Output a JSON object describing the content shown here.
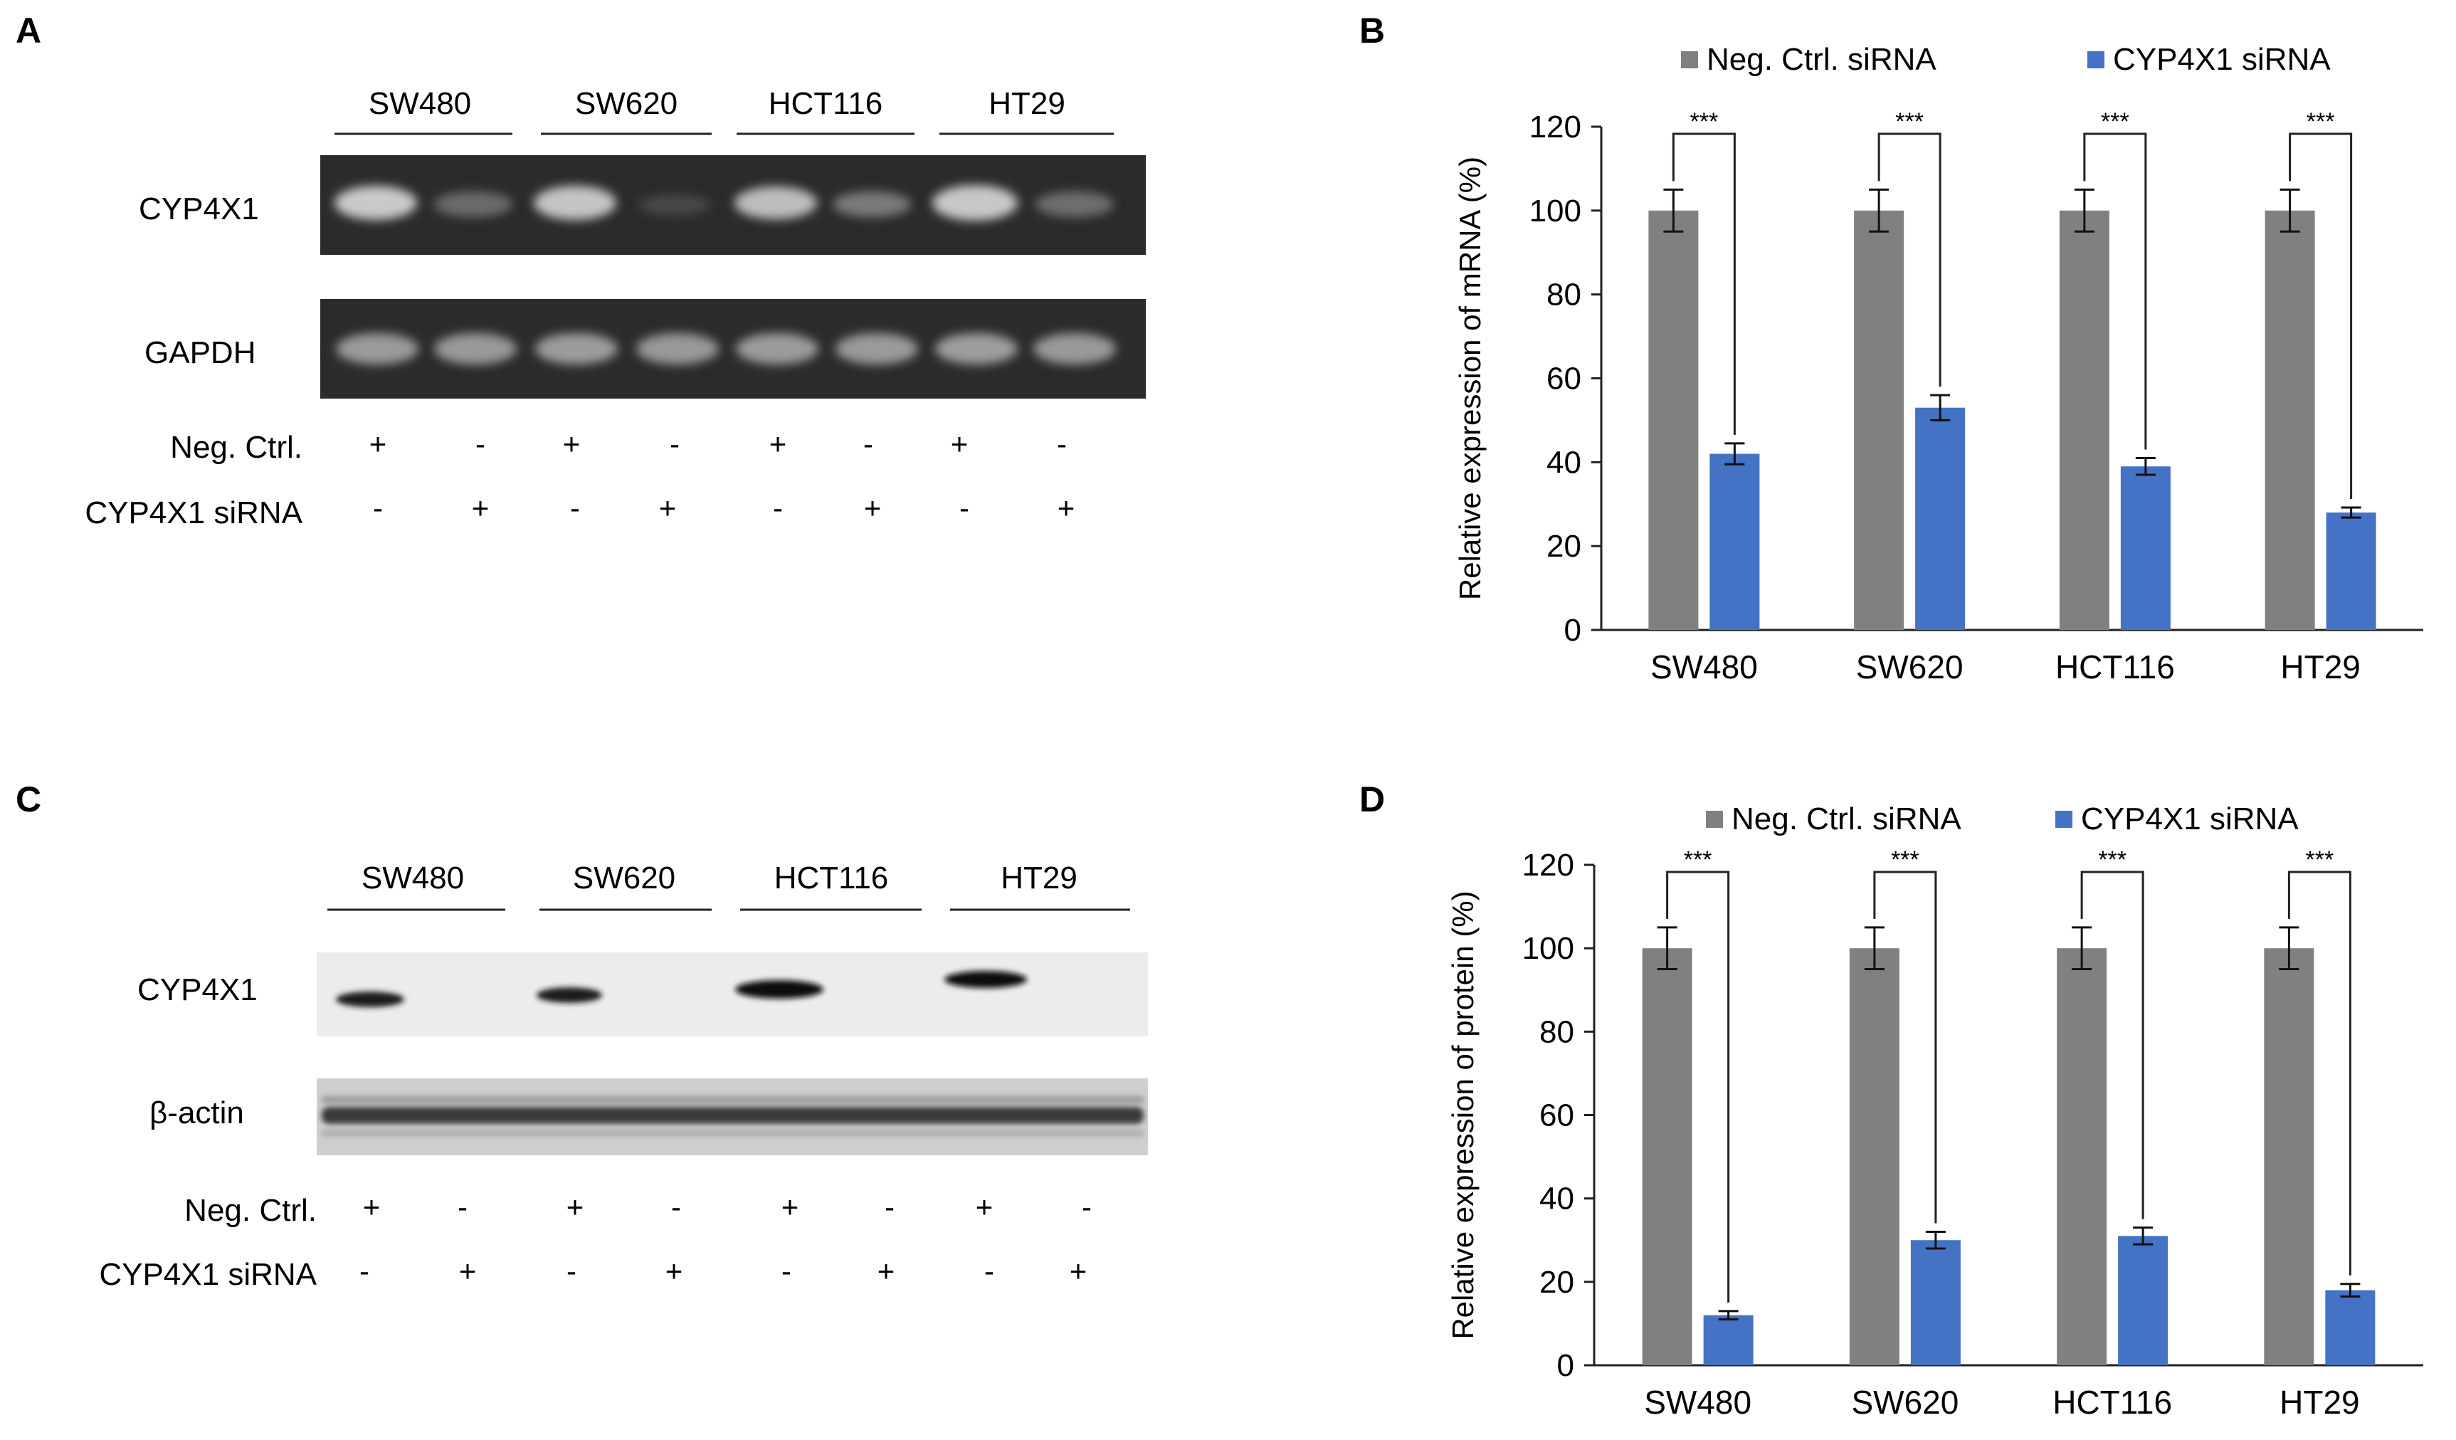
{
  "panels": {
    "A": {
      "letter": "A",
      "cell_lines": [
        "SW480",
        "SW620",
        "HCT116",
        "HT29"
      ],
      "rows": [
        "CYP4X1",
        "GAPDH"
      ],
      "condition_labels": [
        "Neg. Ctrl.",
        "CYP4X1 siRNA"
      ],
      "neg_ctrl_signs": [
        "+",
        "-",
        "+",
        "-",
        "+",
        "-",
        "+",
        "-"
      ],
      "sirna_signs": [
        "-",
        "+",
        "-",
        "+",
        "-",
        "+",
        "-",
        "+"
      ]
    },
    "C": {
      "letter": "C",
      "cell_lines": [
        "SW480",
        "SW620",
        "HCT116",
        "HT29"
      ],
      "rows": [
        "CYP4X1",
        "β-actin"
      ],
      "condition_labels": [
        "Neg. Ctrl.",
        "CYP4X1 siRNA"
      ],
      "neg_ctrl_signs": [
        "+",
        "-",
        "+",
        "-",
        "+",
        "-",
        "+",
        "-"
      ],
      "sirna_signs": [
        "-",
        "+",
        "-",
        "+",
        "-",
        "+",
        "-",
        "+"
      ]
    },
    "B": {
      "letter": "B"
    },
    "D": {
      "letter": "D"
    }
  },
  "colors": {
    "neg_ctrl": "#808080",
    "sirna": "#4472c4",
    "gel_bg": "#2b2b2b",
    "blot_bg": "#ececec"
  },
  "chart_data": [
    {
      "type": "bar",
      "panel": "B",
      "categories": [
        "SW480",
        "SW620",
        "HCT116",
        "HT29"
      ],
      "series": [
        {
          "name": "Neg. Ctrl. siRNA",
          "values": [
            100,
            100,
            100,
            100
          ],
          "errors": [
            5,
            5,
            5,
            5
          ]
        },
        {
          "name": "CYP4X1 siRNA",
          "values": [
            42,
            53,
            39,
            28
          ],
          "errors": [
            2.5,
            3,
            2,
            1.2
          ]
        }
      ],
      "significance": [
        "***",
        "***",
        "***",
        "***"
      ],
      "ylabel": "Relative expression of mRNA (%)",
      "yticks": [
        "0",
        "20",
        "40",
        "60",
        "80",
        "100",
        "120"
      ],
      "ylim": [
        0,
        120
      ],
      "legend": "top"
    },
    {
      "type": "bar",
      "panel": "D",
      "categories": [
        "SW480",
        "SW620",
        "HCT116",
        "HT29"
      ],
      "series": [
        {
          "name": "Neg. Ctrl. siRNA",
          "values": [
            100,
            100,
            100,
            100
          ],
          "errors": [
            5,
            5,
            5,
            5
          ]
        },
        {
          "name": "CYP4X1 siRNA",
          "values": [
            12,
            30,
            31,
            18
          ],
          "errors": [
            1,
            2,
            2,
            1.5
          ]
        }
      ],
      "significance": [
        "***",
        "***",
        "***",
        "***"
      ],
      "ylabel": "Relative expression of protein (%)",
      "yticks": [
        "0",
        "20",
        "40",
        "60",
        "80",
        "100",
        "120"
      ],
      "ylim": [
        0,
        120
      ],
      "legend": "top"
    }
  ]
}
